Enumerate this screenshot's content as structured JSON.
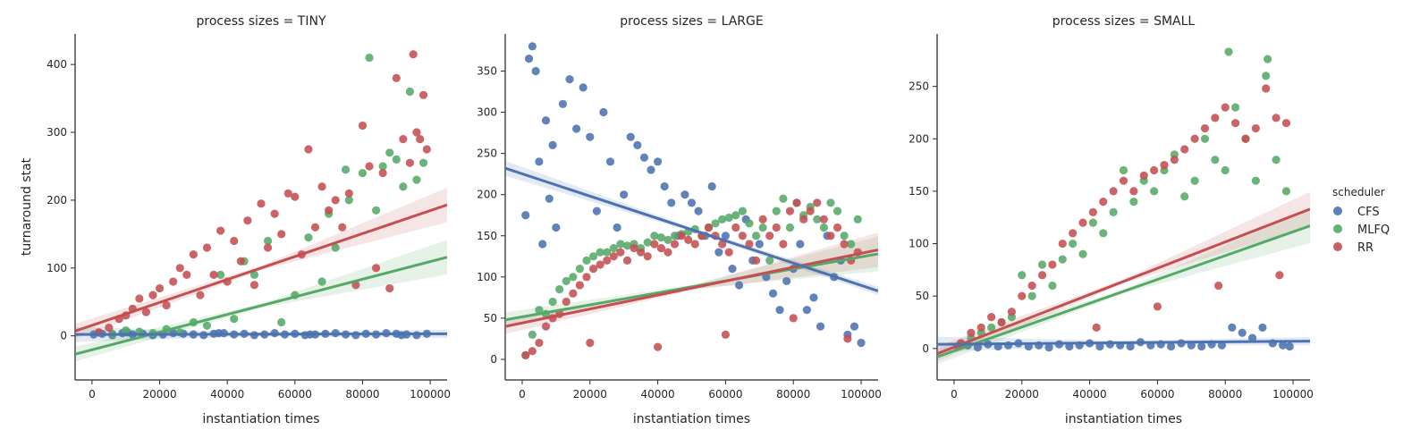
{
  "chart_data": {
    "type": "scatter",
    "facet_label": "process sizes",
    "xlabel": "instantiation times",
    "ylabel": "turnaround stat",
    "legend": {
      "title": "scheduler",
      "placement": "right",
      "entries": [
        "CFS",
        "MLFQ",
        "RR"
      ]
    },
    "colors": {
      "CFS": "#4c72b0",
      "MLFQ": "#55a868",
      "RR": "#c44e52"
    },
    "x_ticks": [
      0,
      20000,
      40000,
      60000,
      80000,
      100000
    ],
    "x_tick_labels": [
      "0",
      "20000",
      "40000",
      "60000",
      "80000",
      "100000"
    ],
    "xlim": [
      -5000,
      105000
    ],
    "panels": [
      {
        "title": "process sizes = TINY",
        "ylim": [
          -65,
          445
        ],
        "y_ticks": [
          0,
          100,
          200,
          300,
          400
        ],
        "y_tick_labels": [
          "0",
          "100",
          "200",
          "300",
          "400"
        ],
        "trend_lines": {
          "CFS": {
            "x": [
              -5000,
              105000
            ],
            "y": [
              2,
              3
            ]
          },
          "MLFQ": {
            "x": [
              -5000,
              105000
            ],
            "y": [
              -27,
              116
            ]
          },
          "RR": {
            "x": [
              -5000,
              105000
            ],
            "y": [
              7,
              193
            ]
          }
        },
        "series": [
          {
            "name": "CFS",
            "x": [
              500,
              3000,
              6000,
              9000,
              12000,
              15000,
              18000,
              21000,
              24000,
              27000,
              30000,
              33000,
              36000,
              39000,
              42000,
              45000,
              48000,
              51000,
              54000,
              57000,
              60000,
              63000,
              66000,
              69000,
              72000,
              75000,
              78000,
              81000,
              84000,
              87000,
              90000,
              93000,
              96000,
              99000,
              10500,
              37500,
              64500,
              91500
            ],
            "y": [
              2,
              3,
              1,
              4,
              2,
              3,
              1,
              2,
              4,
              3,
              2,
              1,
              3,
              4,
              2,
              3,
              1,
              2,
              4,
              2,
              3,
              1,
              2,
              3,
              4,
              2,
              1,
              3,
              2,
              4,
              3,
              2,
              1,
              3,
              5,
              4,
              2,
              1
            ]
          },
          {
            "name": "MLFQ",
            "x": [
              2000,
              6000,
              10000,
              14000,
              18000,
              22000,
              26000,
              30000,
              34000,
              38000,
              42000,
              45000,
              48000,
              52000,
              56000,
              60000,
              64000,
              68000,
              72000,
              76000,
              80000,
              84000,
              86000,
              88000,
              90000,
              92000,
              94000,
              96000,
              98000,
              70000,
              75000,
              82000
            ],
            "y": [
              5,
              3,
              8,
              6,
              4,
              10,
              5,
              20,
              15,
              90,
              25,
              110,
              90,
              140,
              20,
              60,
              145,
              80,
              130,
              200,
              240,
              185,
              250,
              270,
              260,
              220,
              360,
              230,
              255,
              180,
              245,
              410
            ]
          },
          {
            "name": "RR",
            "x": [
              2000,
              5000,
              8000,
              10000,
              12000,
              14000,
              16000,
              18000,
              20000,
              22000,
              24000,
              26000,
              28000,
              30000,
              32000,
              34000,
              36000,
              38000,
              40000,
              42000,
              44000,
              46000,
              48000,
              50000,
              52000,
              54000,
              56000,
              58000,
              60000,
              62000,
              64000,
              66000,
              68000,
              70000,
              72000,
              74000,
              76000,
              78000,
              80000,
              82000,
              84000,
              86000,
              88000,
              90000,
              92000,
              94000,
              95000,
              96000,
              97000,
              98000,
              99000
            ],
            "y": [
              5,
              12,
              25,
              30,
              40,
              55,
              35,
              60,
              70,
              45,
              80,
              100,
              90,
              120,
              60,
              130,
              90,
              155,
              80,
              140,
              110,
              170,
              75,
              195,
              130,
              180,
              150,
              210,
              205,
              120,
              275,
              160,
              220,
              185,
              200,
              160,
              210,
              75,
              310,
              250,
              100,
              240,
              70,
              380,
              290,
              255,
              415,
              300,
              290,
              355,
              275
            ]
          }
        ]
      },
      {
        "title": "process sizes = LARGE",
        "ylim": [
          -25,
          395
        ],
        "y_ticks": [
          0,
          50,
          100,
          150,
          200,
          250,
          300,
          350
        ],
        "y_tick_labels": [
          "0",
          "50",
          "100",
          "150",
          "200",
          "250",
          "300",
          "350"
        ],
        "trend_lines": {
          "CFS": {
            "x": [
              -5000,
              105000
            ],
            "y": [
              232,
              83
            ]
          },
          "MLFQ": {
            "x": [
              -5000,
              105000
            ],
            "y": [
              48,
              128
            ]
          },
          "RR": {
            "x": [
              -5000,
              105000
            ],
            "y": [
              40,
              133
            ]
          }
        },
        "series": [
          {
            "name": "CFS",
            "x": [
              1000,
              2000,
              3000,
              4000,
              5000,
              6000,
              7000,
              8000,
              9000,
              10000,
              12000,
              14000,
              16000,
              18000,
              20000,
              22000,
              24000,
              26000,
              28000,
              30000,
              32000,
              34000,
              36000,
              38000,
              40000,
              42000,
              44000,
              46000,
              48000,
              50000,
              52000,
              54000,
              56000,
              58000,
              60000,
              62000,
              64000,
              66000,
              68000,
              70000,
              72000,
              74000,
              76000,
              78000,
              80000,
              82000,
              84000,
              86000,
              88000,
              90000,
              92000,
              94000,
              96000,
              98000,
              100000
            ],
            "y": [
              175,
              365,
              380,
              350,
              240,
              140,
              290,
              195,
              260,
              160,
              310,
              340,
              280,
              330,
              270,
              180,
              300,
              240,
              160,
              200,
              270,
              260,
              245,
              230,
              240,
              210,
              190,
              150,
              200,
              190,
              180,
              150,
              210,
              130,
              150,
              110,
              90,
              170,
              120,
              140,
              100,
              80,
              60,
              95,
              110,
              140,
              60,
              75,
              40,
              150,
              100,
              120,
              30,
              40,
              20
            ]
          },
          {
            "name": "MLFQ",
            "x": [
              1000,
              3000,
              5000,
              7000,
              9000,
              11000,
              13000,
              15000,
              17000,
              19000,
              21000,
              23000,
              25000,
              27000,
              29000,
              31000,
              33000,
              35000,
              37000,
              39000,
              41000,
              43000,
              45000,
              47000,
              49000,
              51000,
              53000,
              55000,
              57000,
              59000,
              61000,
              63000,
              65000,
              67000,
              69000,
              71000,
              73000,
              75000,
              77000,
              79000,
              81000,
              83000,
              85000,
              87000,
              89000,
              91000,
              93000,
              95000,
              97000,
              99000
            ],
            "y": [
              5,
              30,
              60,
              55,
              70,
              85,
              95,
              100,
              110,
              120,
              125,
              130,
              130,
              135,
              140,
              138,
              140,
              135,
              142,
              150,
              148,
              145,
              150,
              152,
              155,
              158,
              150,
              160,
              165,
              170,
              172,
              175,
              180,
              165,
              150,
              160,
              120,
              180,
              195,
              160,
              190,
              175,
              185,
              170,
              160,
              190,
              180,
              150,
              140,
              170
            ]
          },
          {
            "name": "RR",
            "x": [
              1000,
              3000,
              5000,
              7000,
              9000,
              11000,
              13000,
              15000,
              17000,
              19000,
              21000,
              23000,
              25000,
              27000,
              29000,
              31000,
              33000,
              35000,
              37000,
              39000,
              41000,
              43000,
              45000,
              47000,
              49000,
              51000,
              53000,
              55000,
              57000,
              59000,
              61000,
              63000,
              65000,
              67000,
              69000,
              71000,
              73000,
              75000,
              77000,
              79000,
              81000,
              83000,
              85000,
              87000,
              89000,
              91000,
              93000,
              95000,
              97000,
              99000,
              20000,
              40000,
              60000,
              80000,
              96000
            ],
            "y": [
              5,
              10,
              20,
              40,
              50,
              55,
              70,
              80,
              90,
              100,
              110,
              115,
              120,
              125,
              130,
              120,
              135,
              130,
              125,
              140,
              135,
              130,
              140,
              150,
              145,
              140,
              150,
              160,
              150,
              140,
              130,
              160,
              150,
              140,
              120,
              170,
              150,
              160,
              140,
              180,
              190,
              170,
              180,
              190,
              170,
              150,
              160,
              140,
              120,
              130,
              20,
              15,
              30,
              50,
              25
            ]
          }
        ]
      },
      {
        "title": "process sizes = SMALL",
        "ylim": [
          -30,
          300
        ],
        "y_ticks": [
          0,
          50,
          100,
          150,
          200,
          250
        ],
        "y_tick_labels": [
          "0",
          "50",
          "100",
          "150",
          "200",
          "250"
        ],
        "trend_lines": {
          "CFS": {
            "x": [
              -5000,
              105000
            ],
            "y": [
              4,
              7
            ]
          },
          "MLFQ": {
            "x": [
              -5000,
              105000
            ],
            "y": [
              -8,
              117
            ]
          },
          "RR": {
            "x": [
              -5000,
              105000
            ],
            "y": [
              -5,
              133
            ]
          }
        },
        "series": [
          {
            "name": "CFS",
            "x": [
              1000,
              4000,
              7000,
              10000,
              13000,
              16000,
              19000,
              22000,
              25000,
              28000,
              31000,
              34000,
              37000,
              40000,
              43000,
              46000,
              49000,
              52000,
              55000,
              58000,
              61000,
              64000,
              67000,
              70000,
              73000,
              76000,
              79000,
              82000,
              85000,
              88000,
              91000,
              94000,
              97000,
              99000
            ],
            "y": [
              2,
              3,
              1,
              4,
              2,
              3,
              5,
              2,
              3,
              1,
              4,
              2,
              3,
              5,
              2,
              4,
              3,
              2,
              6,
              3,
              4,
              2,
              5,
              3,
              2,
              4,
              3,
              20,
              15,
              10,
              20,
              5,
              3,
              2
            ]
          },
          {
            "name": "MLFQ",
            "x": [
              2000,
              5000,
              8000,
              11000,
              14000,
              17000,
              20000,
              23000,
              26000,
              29000,
              32000,
              35000,
              38000,
              41000,
              44000,
              47000,
              50000,
              53000,
              56000,
              59000,
              62000,
              65000,
              68000,
              71000,
              74000,
              77000,
              80000,
              83000,
              86000,
              89000,
              92000,
              95000,
              98000,
              81000,
              92500
            ],
            "y": [
              5,
              10,
              15,
              20,
              25,
              30,
              70,
              50,
              80,
              60,
              85,
              100,
              90,
              120,
              110,
              130,
              170,
              140,
              160,
              150,
              170,
              185,
              145,
              160,
              200,
              180,
              170,
              230,
              200,
              160,
              260,
              180,
              150,
              283,
              276
            ]
          },
          {
            "name": "RR",
            "x": [
              2000,
              5000,
              8000,
              11000,
              14000,
              17000,
              20000,
              23000,
              26000,
              29000,
              32000,
              35000,
              38000,
              41000,
              44000,
              47000,
              50000,
              53000,
              56000,
              59000,
              62000,
              65000,
              68000,
              71000,
              74000,
              77000,
              80000,
              83000,
              86000,
              89000,
              92000,
              95000,
              98000,
              42000,
              60000,
              78000,
              96000
            ],
            "y": [
              5,
              15,
              20,
              30,
              25,
              35,
              50,
              60,
              70,
              80,
              100,
              110,
              120,
              130,
              140,
              150,
              160,
              150,
              165,
              170,
              175,
              180,
              190,
              200,
              210,
              220,
              230,
              215,
              200,
              210,
              248,
              220,
              215,
              20,
              40,
              60,
              70
            ]
          }
        ]
      }
    ]
  }
}
